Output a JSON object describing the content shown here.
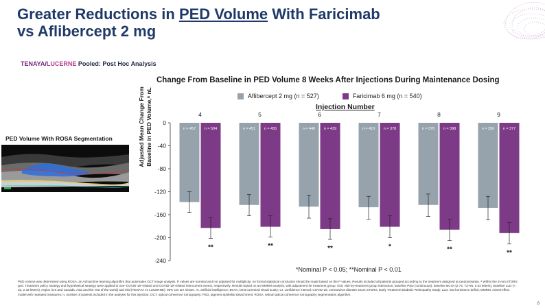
{
  "header": {
    "title_pre": "Greater Reductions in ",
    "title_underline": "PED Volume",
    "title_post": " With Faricimab",
    "title_line2": "vs Aflibercept 2 mg",
    "subtitle_tenaya": "TENAYA",
    "subtitle_slash": "/",
    "subtitle_lucerne": "LUCERNE",
    "subtitle_rest": " Pooled: Post Hoc Analysis"
  },
  "rosa": {
    "title": "PED Volume With ROSA Segmentation"
  },
  "colors": {
    "aflibercept": "#96a3ad",
    "faricimab": "#7d3a86",
    "title": "#1f3a68"
  },
  "chart_data": {
    "type": "bar",
    "title": "Change From Baseline in PED Volume 8 Weeks After Injections During Maintenance Dosing",
    "xlabel": "Injection Number",
    "ylabel": "Adjusted Mean Change From Baseline in PED Volume,ᵃ nL",
    "categories": [
      "4",
      "5",
      "6",
      "7",
      "8",
      "9"
    ],
    "ylim": [
      -240,
      0
    ],
    "yticks": [
      0,
      -40,
      -80,
      -120,
      -160,
      -200,
      -240
    ],
    "series": [
      {
        "name": "Aflibercept 2 mg (n = 527)",
        "color": "#96a3ad",
        "values": [
          -138,
          -143,
          -146,
          -147,
          -143,
          -148
        ],
        "err_low": [
          -156,
          -162,
          -166,
          -168,
          -163,
          -169
        ],
        "err_high": [
          -120,
          -125,
          -126,
          -128,
          -124,
          -128
        ],
        "n": [
          "n = 457",
          "n = 451",
          "n = 440",
          "n = 410",
          "n = 376",
          "n = 356"
        ]
      },
      {
        "name": "Faricimab 6 mg (n = 540)",
        "color": "#7d3a86",
        "values": [
          -183,
          -181,
          -185,
          -181,
          -186,
          -192
        ],
        "err_low": [
          -201,
          -199,
          -203,
          -200,
          -205,
          -211
        ],
        "err_high": [
          -165,
          -162,
          -167,
          -162,
          -168,
          -174
        ],
        "n": [
          "n = 504",
          "n = 455",
          "n = 439",
          "n = 378",
          "n = 398",
          "n = 377"
        ]
      }
    ],
    "significance": [
      "**",
      "**",
      "**",
      "*",
      "**",
      "**"
    ],
    "note": "*Nominal P < 0.05; **Nominal P < 0.01"
  },
  "footer": {
    "text": "PED volume was determined using ROSA, an AI/machine learning algorithm that automates OCT image analysis. P values are nominal and not adjusted for multiplicity; no formal statistical conclusion should be made based on the P values. Results included all patients grouped according to the treatment assigned at randomisation. ᵃ Within the 3-mm ETDRS grid. Treatment policy strategy and hypothetical strategy were applied to non–COVID-19–related and COVID-19–related intercurrent events, respectively. Results based on an MMRM analysis, with adjustment for treatment group, visit, visit-by-treatment group interaction, baseline PED (continuous), baseline BCVA (≥ 74, 73–55, ≤ 54 letters), baseline LLD (< 33, ≥ 33 letters), region (US and Canada, Asia and the rest of the world) and trial (TENAYA vs LUCERNE). 95% CIs are shown. AI, artificial intelligence; BCVA, best-corrected visual acuity; CI, confidence interval; COVID-19, coronavirus disease 2019; ETDRS, Early Treatment Diabetic Retinopathy Study; LLD, low-luminance deficit; MMRM, mixed-effect model with repeated measures; n, number of patients included in the analysis for this injection; OCT, optical coherence tomography; PED, pigment epithelial detachment; ROSA, retinal optical coherence tomography segmentation algorithm.",
    "page_number": "8"
  }
}
